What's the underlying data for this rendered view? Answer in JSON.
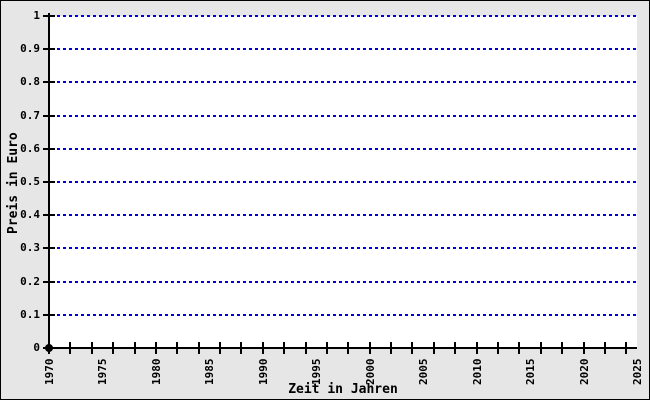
{
  "window": {
    "background_color": "#e6e6e6",
    "border_color": "#000000"
  },
  "chart_data": {
    "type": "scatter",
    "title": "",
    "xlabel": "Zeit in Jahren",
    "ylabel": "Preis in Euro",
    "xlim": [
      1970,
      2025
    ],
    "ylim": [
      0,
      1
    ],
    "x_axis": {
      "label_years": [
        1970,
        1975,
        1980,
        1985,
        1990,
        1995,
        2000,
        2005,
        2010,
        2015,
        2020,
        2025
      ],
      "tick_labels": [
        "1970",
        "1975",
        "1980",
        "1985",
        "1990",
        "1995",
        "2000",
        "2005",
        "2010",
        "2015",
        "2020",
        "2025"
      ],
      "minor_tick_step": 2,
      "label_rotation_deg": -90
    },
    "y_axis": {
      "ticks": [
        0,
        0.1,
        0.2,
        0.3,
        0.4,
        0.5,
        0.6,
        0.7,
        0.8,
        0.9,
        1
      ],
      "tick_labels": [
        "0",
        "0.1",
        "0.2",
        "0.3",
        "0.4",
        "0.5",
        "0.6",
        "0.7",
        "0.8",
        "0.9",
        "1"
      ]
    },
    "gridlines": {
      "orientation": "horizontal",
      "style": "dashed",
      "at": [
        0.1,
        0.2,
        0.3,
        0.4,
        0.5,
        0.6,
        0.7,
        0.8,
        0.9,
        1
      ]
    },
    "points": [
      {
        "x": 1970,
        "y": 0
      }
    ],
    "colors": {
      "grid": "#0000dd",
      "axis": "#000000",
      "text": "#000000",
      "background": "#e6e6e6",
      "plot_background": "#ffffff",
      "point": "#000000"
    }
  }
}
